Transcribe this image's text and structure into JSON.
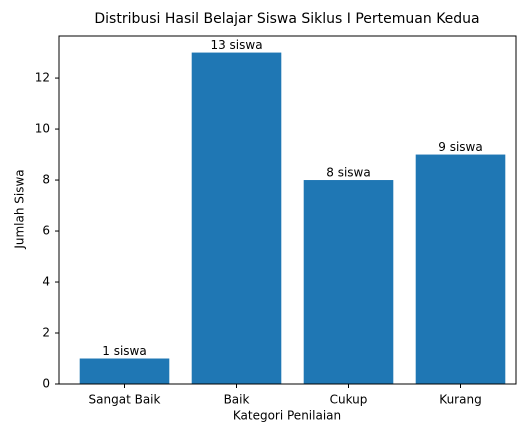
{
  "chart_data": {
    "type": "bar",
    "title": "Distribusi Hasil Belajar Siswa Siklus I Pertemuan Kedua",
    "x_label": "Kategori Penilaian",
    "y_label": "Jumlah Siswa",
    "categories": [
      "Sangat Baik",
      "Baik",
      "Cukup",
      "Kurang"
    ],
    "values": [
      1,
      13,
      8,
      9
    ],
    "value_labels": [
      "1 siswa",
      "13 siswa",
      "8 siswa",
      "9 siswa"
    ],
    "color": "#1f77b4",
    "ylim": [
      0,
      13.65
    ],
    "yticks": [
      0,
      2,
      4,
      6,
      8,
      10,
      12
    ],
    "grid": false
  }
}
